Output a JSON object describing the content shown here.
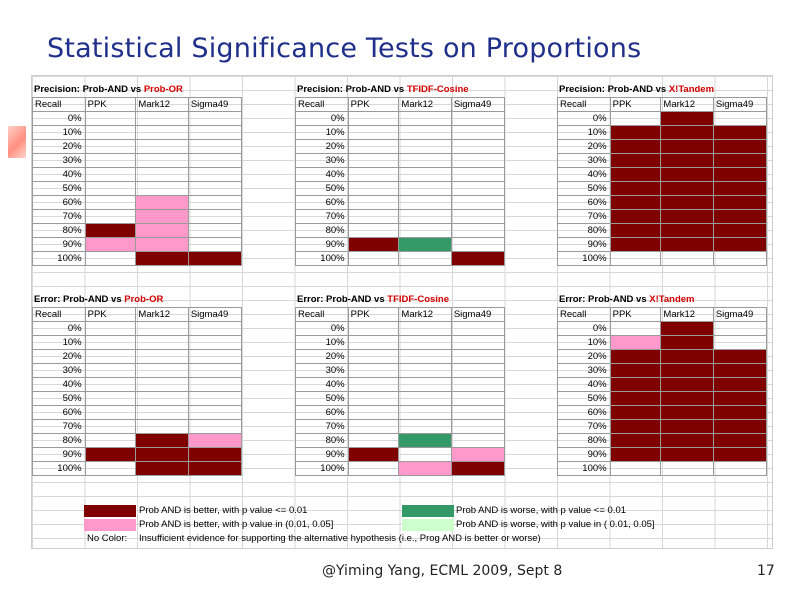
{
  "slide": {
    "title": "Statistical Significance Tests on Proportions",
    "footer": "@Yiming Yang, ECML 2009, Sept 8",
    "page_number": "17"
  },
  "columns": [
    "Recall",
    "PPK",
    "Mark12",
    "Sigma49"
  ],
  "recall_levels": [
    "0%",
    "10%",
    "20%",
    "30%",
    "40%",
    "50%",
    "60%",
    "70%",
    "80%",
    "90%",
    "100%"
  ],
  "panels": [
    {
      "prefix": "Precision: Prob-AND vs ",
      "highlight": "Prob-OR",
      "cells": [
        [
          "",
          "",
          ""
        ],
        [
          "",
          "",
          ""
        ],
        [
          "",
          "",
          ""
        ],
        [
          "",
          "",
          ""
        ],
        [
          "",
          "",
          ""
        ],
        [
          "",
          "",
          ""
        ],
        [
          "",
          "pink",
          ""
        ],
        [
          "",
          "pink",
          ""
        ],
        [
          "darkred",
          "pink",
          ""
        ],
        [
          "pink",
          "pink",
          ""
        ],
        [
          "",
          "darkred",
          "darkred"
        ]
      ]
    },
    {
      "prefix": "Precision: Prob-AND vs ",
      "highlight": "TFIDF-Cosine",
      "cells": [
        [
          "",
          "",
          ""
        ],
        [
          "",
          "",
          ""
        ],
        [
          "",
          "",
          ""
        ],
        [
          "",
          "",
          ""
        ],
        [
          "",
          "",
          ""
        ],
        [
          "",
          "",
          ""
        ],
        [
          "",
          "",
          ""
        ],
        [
          "",
          "",
          ""
        ],
        [
          "",
          "",
          ""
        ],
        [
          "darkred",
          "green",
          ""
        ],
        [
          "",
          "",
          "darkred"
        ]
      ]
    },
    {
      "prefix": "Precision: Prob-AND vs ",
      "highlight": "X!Tandem",
      "cells": [
        [
          "",
          "darkred",
          ""
        ],
        [
          "darkred",
          "darkred",
          "darkred"
        ],
        [
          "darkred",
          "darkred",
          "darkred"
        ],
        [
          "darkred",
          "darkred",
          "darkred"
        ],
        [
          "darkred",
          "darkred",
          "darkred"
        ],
        [
          "darkred",
          "darkred",
          "darkred"
        ],
        [
          "darkred",
          "darkred",
          "darkred"
        ],
        [
          "darkred",
          "darkred",
          "darkred"
        ],
        [
          "darkred",
          "darkred",
          "darkred"
        ],
        [
          "darkred",
          "darkred",
          "darkred"
        ],
        [
          "",
          "",
          ""
        ]
      ]
    },
    {
      "prefix": "Error: Prob-AND vs ",
      "highlight": "Prob-OR",
      "cells": [
        [
          "",
          "",
          ""
        ],
        [
          "",
          "",
          ""
        ],
        [
          "",
          "",
          ""
        ],
        [
          "",
          "",
          ""
        ],
        [
          "",
          "",
          ""
        ],
        [
          "",
          "",
          ""
        ],
        [
          "",
          "",
          ""
        ],
        [
          "",
          "",
          ""
        ],
        [
          "",
          "darkred",
          "pink"
        ],
        [
          "darkred",
          "darkred",
          "darkred"
        ],
        [
          "",
          "darkred",
          "darkred"
        ]
      ]
    },
    {
      "prefix": "Error: Prob-AND vs ",
      "highlight": "TFIDF-Cosine",
      "cells": [
        [
          "",
          "",
          ""
        ],
        [
          "",
          "",
          ""
        ],
        [
          "",
          "",
          ""
        ],
        [
          "",
          "",
          ""
        ],
        [
          "",
          "",
          ""
        ],
        [
          "",
          "",
          ""
        ],
        [
          "",
          "",
          ""
        ],
        [
          "",
          "",
          ""
        ],
        [
          "",
          "green",
          ""
        ],
        [
          "darkred",
          "",
          "pink"
        ],
        [
          "",
          "pink",
          "darkred"
        ]
      ]
    },
    {
      "prefix": "Error: Prob-AND vs ",
      "highlight": "X!Tandem",
      "cells": [
        [
          "",
          "darkred",
          ""
        ],
        [
          "pink",
          "darkred",
          ""
        ],
        [
          "darkred",
          "darkred",
          "darkred"
        ],
        [
          "darkred",
          "darkred",
          "darkred"
        ],
        [
          "darkred",
          "darkred",
          "darkred"
        ],
        [
          "darkred",
          "darkred",
          "darkred"
        ],
        [
          "darkred",
          "darkred",
          "darkred"
        ],
        [
          "darkred",
          "darkred",
          "darkred"
        ],
        [
          "darkred",
          "darkred",
          "darkred"
        ],
        [
          "darkred",
          "darkred",
          "darkred"
        ],
        [
          "",
          "",
          ""
        ]
      ]
    }
  ],
  "legend": {
    "better_001": "Prob AND is better, with p value <= 0.01",
    "better_005": "Prob AND is better, with p value in (0.01, 0.05]",
    "worse_001": "Prob AND is worse, with p value <= 0.01",
    "worse_005": "Prob AND is worse, with p value in ( 0.01, 0.05]",
    "no_color_label": "No Color:",
    "no_color_text": "Insufficient evidence for supporting the alternative hypothesis (i.e., Prog AND is better or worse)"
  },
  "colors": {
    "darkred": "#800000",
    "pink": "#ff99cc",
    "green": "#339966",
    "lightgreen": "#ccffcc",
    "title_blue": "#1f2f8a",
    "highlight_red": "#d40000"
  }
}
